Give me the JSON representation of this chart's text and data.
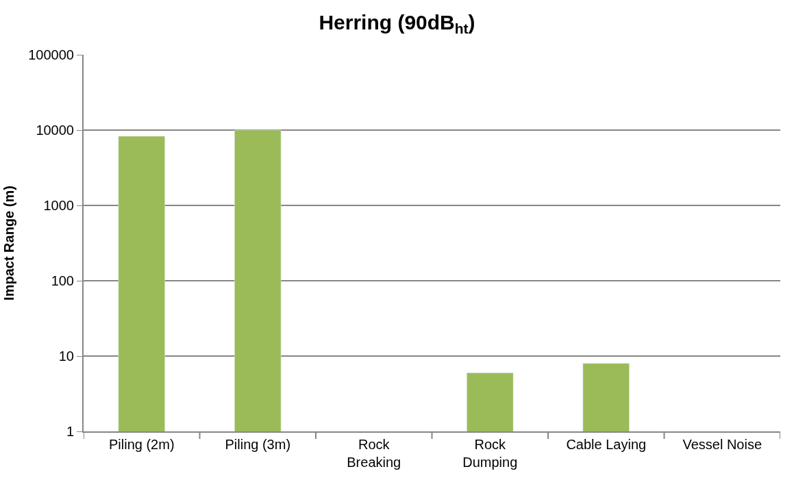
{
  "chart_data": {
    "type": "bar",
    "title": "Herring (90dB$_{ht}$)",
    "ylabel": "Impact Range (m)",
    "categories": [
      "Piling (2m)",
      "Piling (3m)",
      "Rock\nBreaking",
      "Rock\nDumping",
      "Cable Laying",
      "Vessel Noise"
    ],
    "values": [
      8300,
      10000,
      null,
      6,
      8,
      null
    ],
    "color": "#9bbb59",
    "log": true,
    "ylim": [
      1,
      100000
    ],
    "yticks": [
      1,
      10,
      100,
      1000,
      10000,
      100000
    ],
    "grid": "y"
  }
}
